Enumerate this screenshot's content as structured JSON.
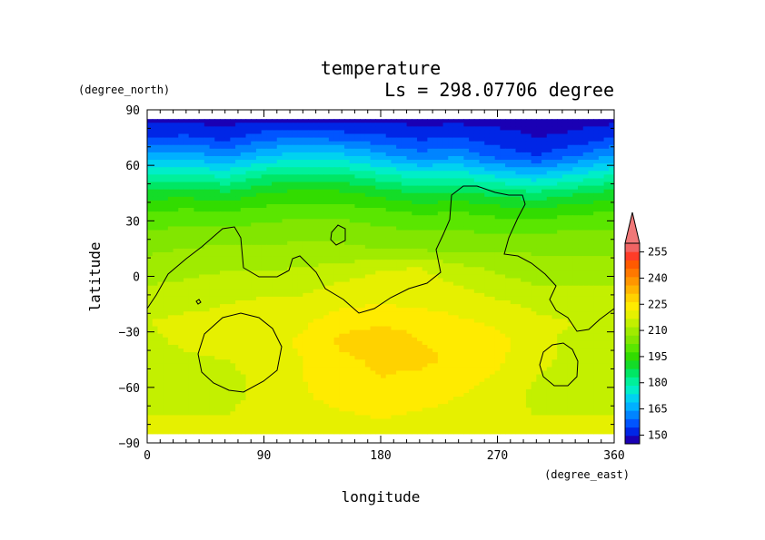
{
  "chart_data": {
    "type": "heatmap",
    "title": "temperature",
    "subtitle": "Ls = 298.07706 degree",
    "xlabel": "longitude",
    "ylabel": "latitude",
    "x_units": "(degree_east)",
    "y_units": "(degree_north)",
    "xlim": [
      0,
      360
    ],
    "ylim": [
      -90,
      90
    ],
    "x_ticks": [
      "0",
      "90",
      "180",
      "270",
      "360"
    ],
    "y_ticks": [
      "90",
      "60",
      "30",
      "0",
      "−30",
      "−60",
      "−90"
    ],
    "x_tick_values": [
      0,
      90,
      180,
      270,
      360
    ],
    "y_tick_values": [
      90,
      60,
      30,
      0,
      -30,
      -60,
      -90
    ],
    "colorbar": {
      "levels": [
        145,
        150,
        155,
        160,
        165,
        170,
        175,
        180,
        185,
        190,
        195,
        200,
        205,
        210,
        215,
        220,
        225,
        230,
        235,
        240,
        245,
        250,
        255,
        260
      ],
      "colors": [
        "#1a00b4",
        "#0026e6",
        "#0055ff",
        "#0084ff",
        "#00b0ff",
        "#00d2f0",
        "#00eec8",
        "#00f09a",
        "#00e664",
        "#14dc28",
        "#32dc00",
        "#5ae600",
        "#82e600",
        "#a0eb00",
        "#c3f000",
        "#e6f000",
        "#ffeb00",
        "#ffd200",
        "#ffb400",
        "#ff9600",
        "#ff7800",
        "#ff5a00",
        "#ff3c28",
        "#f06464"
      ],
      "tick_labels": [
        "150",
        "165",
        "180",
        "195",
        "210",
        "225",
        "240",
        "255"
      ],
      "tick_values": [
        150,
        165,
        180,
        195,
        210,
        225,
        240,
        255
      ],
      "overflow_color": "#f07878"
    },
    "latitudes": [
      85,
      75,
      65,
      55,
      45,
      35,
      25,
      15,
      5,
      -5,
      -15,
      -25,
      -35,
      -45,
      -55,
      -65,
      -75,
      -85
    ],
    "longitudes": [
      0,
      30,
      60,
      90,
      120,
      150,
      180,
      210,
      240,
      270,
      300,
      330,
      360
    ],
    "values": [
      [
        148,
        148,
        148,
        148,
        148,
        148,
        148,
        148,
        148,
        148,
        148,
        148,
        148
      ],
      [
        155,
        156,
        153,
        158,
        160,
        158,
        156,
        154,
        155,
        152,
        150,
        151,
        155
      ],
      [
        166,
        168,
        164,
        170,
        173,
        172,
        167,
        162,
        164,
        158,
        155,
        160,
        166
      ],
      [
        180,
        181,
        178,
        184,
        186,
        185,
        181,
        177,
        178,
        173,
        170,
        175,
        180
      ],
      [
        192,
        193,
        191,
        195,
        197,
        196,
        193,
        190,
        191,
        188,
        186,
        189,
        192
      ],
      [
        200,
        201,
        200,
        202,
        203,
        203,
        201,
        199,
        200,
        198,
        197,
        199,
        200
      ],
      [
        205,
        206,
        206,
        207,
        208,
        208,
        206,
        205,
        205,
        204,
        204,
        205,
        205
      ],
      [
        209,
        210,
        211,
        211,
        211,
        211,
        210,
        209,
        209,
        209,
        209,
        209,
        209
      ],
      [
        212,
        213,
        214,
        214,
        215,
        216,
        219,
        220,
        216,
        214,
        212,
        212,
        212
      ],
      [
        215,
        216,
        218,
        218,
        218,
        221,
        223,
        223,
        220,
        217,
        215,
        215,
        215
      ],
      [
        218,
        219,
        220,
        221,
        222,
        224,
        225,
        224,
        223,
        221,
        219,
        218,
        218
      ],
      [
        220,
        221,
        221,
        222,
        224,
        228,
        229,
        228,
        226,
        224,
        221,
        220,
        220
      ],
      [
        219,
        221,
        222,
        223,
        226,
        231,
        234,
        230,
        229,
        227,
        221,
        219,
        219
      ],
      [
        218,
        219,
        220,
        221,
        225,
        229,
        231,
        231,
        229,
        226,
        221,
        219,
        218
      ],
      [
        217,
        218,
        219,
        221,
        225,
        228,
        230,
        229,
        227,
        224,
        220,
        218,
        217
      ],
      [
        217,
        218,
        219,
        221,
        224,
        228,
        229,
        228,
        225,
        222,
        219,
        218,
        217
      ],
      [
        220,
        220,
        220,
        221,
        222,
        224,
        226,
        224,
        222,
        221,
        220,
        220,
        220
      ],
      [
        221,
        221,
        221,
        221,
        221,
        221,
        221,
        221,
        221,
        221,
        221,
        221,
        221
      ]
    ]
  }
}
